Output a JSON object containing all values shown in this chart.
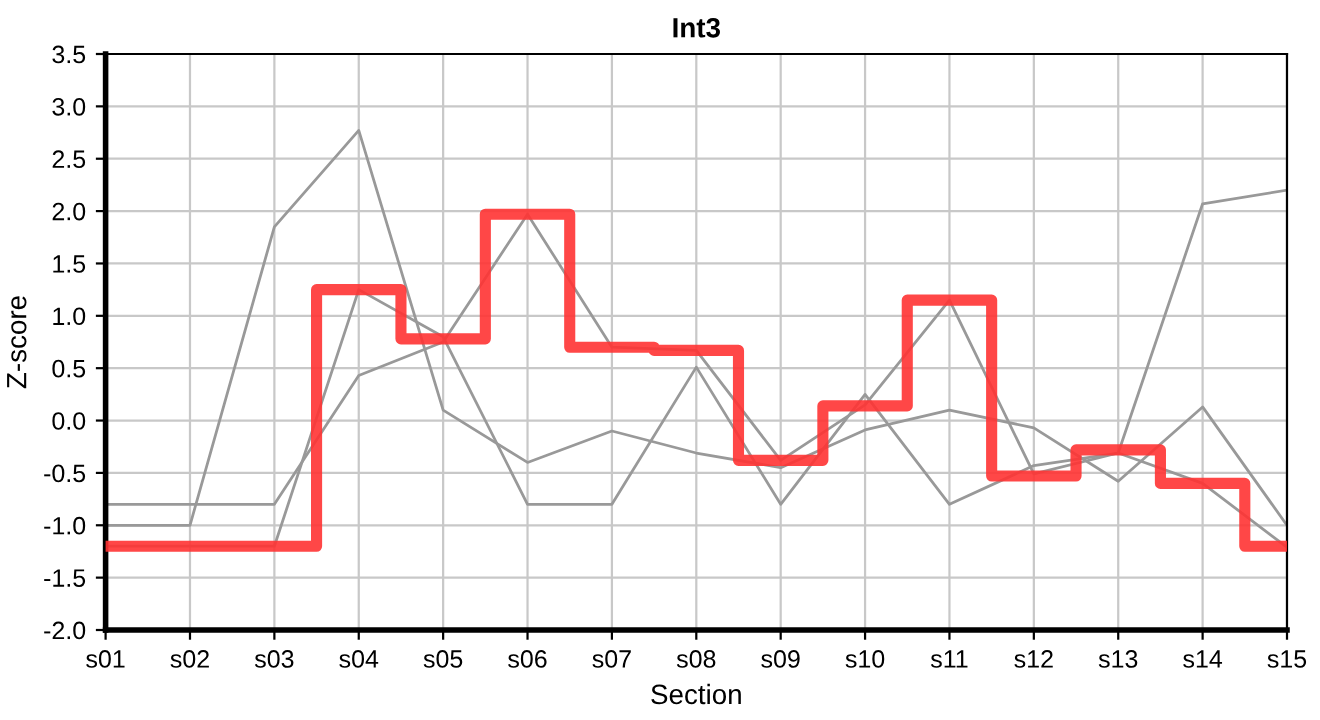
{
  "chart_data": {
    "type": "line",
    "title": "Int3",
    "xlabel": "Section",
    "ylabel": "Z-score",
    "categories": [
      "s01",
      "s02",
      "s03",
      "s04",
      "s05",
      "s06",
      "s07",
      "s08",
      "s09",
      "s10",
      "s11",
      "s12",
      "s13",
      "s14",
      "s15"
    ],
    "ylim": [
      -2.0,
      3.5
    ],
    "yticks": [
      {
        "value": -2.0,
        "label": "-2.0"
      },
      {
        "value": -1.5,
        "label": "-1.5"
      },
      {
        "value": -1.0,
        "label": "-1.0"
      },
      {
        "value": -0.5,
        "label": "-0.5"
      },
      {
        "value": 0.0,
        "label": "0.0"
      },
      {
        "value": 0.5,
        "label": "0.5"
      },
      {
        "value": 1.0,
        "label": "1.0"
      },
      {
        "value": 1.5,
        "label": "1.5"
      },
      {
        "value": 2.0,
        "label": "2.0"
      },
      {
        "value": 2.5,
        "label": "2.5"
      },
      {
        "value": 3.0,
        "label": "3.0"
      },
      {
        "value": 3.5,
        "label": "3.5"
      }
    ],
    "grid": true,
    "legend": false,
    "series": [
      {
        "color": "#999999",
        "values": [
          -1.0,
          -1.0,
          1.85,
          2.77,
          0.1,
          -0.4,
          -0.1,
          -0.31,
          -0.45,
          -0.09,
          0.1,
          -0.07,
          -0.58,
          0.13,
          -1.0
        ]
      },
      {
        "color": "#999999",
        "values": [
          -0.8,
          -0.8,
          -0.8,
          0.43,
          0.75,
          1.97,
          0.7,
          0.67,
          -0.38,
          0.15,
          1.15,
          -0.51,
          -0.31,
          -0.6,
          -1.21
        ]
      },
      {
        "color": "#999999",
        "values": [
          -1.2,
          -1.2,
          -1.2,
          1.25,
          0.8,
          -0.8,
          -0.8,
          0.51,
          -0.8,
          0.25,
          -0.8,
          -0.43,
          -0.31,
          2.07,
          2.2
        ]
      },
      {
        "type": "step",
        "color": "#ff3333",
        "values": [
          -1.2,
          -1.2,
          -1.2,
          1.25,
          0.78,
          1.97,
          0.7,
          0.67,
          -0.38,
          0.14,
          1.15,
          -0.53,
          -0.28,
          -0.6,
          -1.2
        ]
      }
    ]
  }
}
